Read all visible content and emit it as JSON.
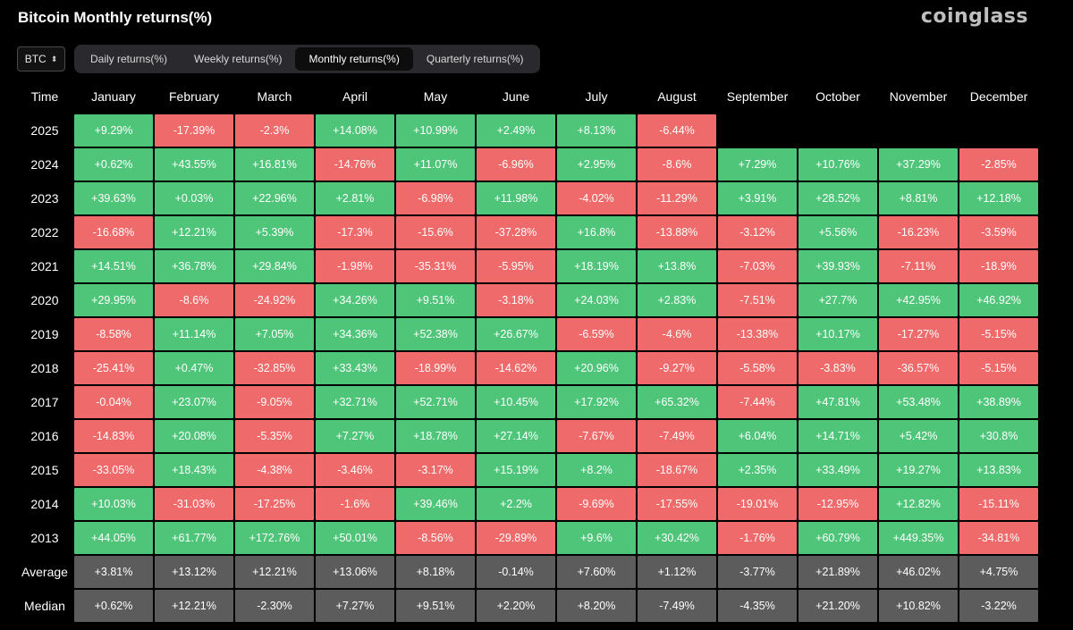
{
  "header": {
    "title": "Bitcoin Monthly returns(%)",
    "brand": "coinglass"
  },
  "controls": {
    "symbol": "BTC",
    "tabs": [
      {
        "label": "Daily returns(%)",
        "active": false
      },
      {
        "label": "Weekly returns(%)",
        "active": false
      },
      {
        "label": "Monthly returns(%)",
        "active": true
      },
      {
        "label": "Quarterly returns(%)",
        "active": false
      }
    ]
  },
  "colors": {
    "positive": "#4fc57a",
    "negative": "#ef6a6a",
    "stat": "#5c5c5c",
    "background": "#000000"
  },
  "chart_data": {
    "type": "heatmap",
    "title": "Bitcoin Monthly returns(%)",
    "row_header": "Time",
    "columns": [
      "January",
      "February",
      "March",
      "April",
      "May",
      "June",
      "July",
      "August",
      "September",
      "October",
      "November",
      "December"
    ],
    "rows": [
      {
        "label": "2025",
        "values": [
          "+9.29%",
          "-17.39%",
          "-2.3%",
          "+14.08%",
          "+10.99%",
          "+2.49%",
          "+8.13%",
          "-6.44%",
          null,
          null,
          null,
          null
        ]
      },
      {
        "label": "2024",
        "values": [
          "+0.62%",
          "+43.55%",
          "+16.81%",
          "-14.76%",
          "+11.07%",
          "-6.96%",
          "+2.95%",
          "-8.6%",
          "+7.29%",
          "+10.76%",
          "+37.29%",
          "-2.85%"
        ]
      },
      {
        "label": "2023",
        "values": [
          "+39.63%",
          "+0.03%",
          "+22.96%",
          "+2.81%",
          "-6.98%",
          "+11.98%",
          "-4.02%",
          "-11.29%",
          "+3.91%",
          "+28.52%",
          "+8.81%",
          "+12.18%"
        ]
      },
      {
        "label": "2022",
        "values": [
          "-16.68%",
          "+12.21%",
          "+5.39%",
          "-17.3%",
          "-15.6%",
          "-37.28%",
          "+16.8%",
          "-13.88%",
          "-3.12%",
          "+5.56%",
          "-16.23%",
          "-3.59%"
        ]
      },
      {
        "label": "2021",
        "values": [
          "+14.51%",
          "+36.78%",
          "+29.84%",
          "-1.98%",
          "-35.31%",
          "-5.95%",
          "+18.19%",
          "+13.8%",
          "-7.03%",
          "+39.93%",
          "-7.11%",
          "-18.9%"
        ]
      },
      {
        "label": "2020",
        "values": [
          "+29.95%",
          "-8.6%",
          "-24.92%",
          "+34.26%",
          "+9.51%",
          "-3.18%",
          "+24.03%",
          "+2.83%",
          "-7.51%",
          "+27.7%",
          "+42.95%",
          "+46.92%"
        ]
      },
      {
        "label": "2019",
        "values": [
          "-8.58%",
          "+11.14%",
          "+7.05%",
          "+34.36%",
          "+52.38%",
          "+26.67%",
          "-6.59%",
          "-4.6%",
          "-13.38%",
          "+10.17%",
          "-17.27%",
          "-5.15%"
        ]
      },
      {
        "label": "2018",
        "values": [
          "-25.41%",
          "+0.47%",
          "-32.85%",
          "+33.43%",
          "-18.99%",
          "-14.62%",
          "+20.96%",
          "-9.27%",
          "-5.58%",
          "-3.83%",
          "-36.57%",
          "-5.15%"
        ]
      },
      {
        "label": "2017",
        "values": [
          "-0.04%",
          "+23.07%",
          "-9.05%",
          "+32.71%",
          "+52.71%",
          "+10.45%",
          "+17.92%",
          "+65.32%",
          "-7.44%",
          "+47.81%",
          "+53.48%",
          "+38.89%"
        ]
      },
      {
        "label": "2016",
        "values": [
          "-14.83%",
          "+20.08%",
          "-5.35%",
          "+7.27%",
          "+18.78%",
          "+27.14%",
          "-7.67%",
          "-7.49%",
          "+6.04%",
          "+14.71%",
          "+5.42%",
          "+30.8%"
        ]
      },
      {
        "label": "2015",
        "values": [
          "-33.05%",
          "+18.43%",
          "-4.38%",
          "-3.46%",
          "-3.17%",
          "+15.19%",
          "+8.2%",
          "-18.67%",
          "+2.35%",
          "+33.49%",
          "+19.27%",
          "+13.83%"
        ]
      },
      {
        "label": "2014",
        "values": [
          "+10.03%",
          "-31.03%",
          "-17.25%",
          "-1.6%",
          "+39.46%",
          "+2.2%",
          "-9.69%",
          "-17.55%",
          "-19.01%",
          "-12.95%",
          "+12.82%",
          "-15.11%"
        ]
      },
      {
        "label": "2013",
        "values": [
          "+44.05%",
          "+61.77%",
          "+172.76%",
          "+50.01%",
          "-8.56%",
          "-29.89%",
          "+9.6%",
          "+30.42%",
          "-1.76%",
          "+60.79%",
          "+449.35%",
          "-34.81%"
        ]
      }
    ],
    "summary_rows": [
      {
        "label": "Average",
        "values": [
          "+3.81%",
          "+13.12%",
          "+12.21%",
          "+13.06%",
          "+8.18%",
          "-0.14%",
          "+7.60%",
          "+1.12%",
          "-3.77%",
          "+21.89%",
          "+46.02%",
          "+4.75%"
        ]
      },
      {
        "label": "Median",
        "values": [
          "+0.62%",
          "+12.21%",
          "-2.30%",
          "+7.27%",
          "+9.51%",
          "+2.20%",
          "+8.20%",
          "-7.49%",
          "-4.35%",
          "+21.20%",
          "+10.82%",
          "-3.22%"
        ]
      }
    ]
  }
}
